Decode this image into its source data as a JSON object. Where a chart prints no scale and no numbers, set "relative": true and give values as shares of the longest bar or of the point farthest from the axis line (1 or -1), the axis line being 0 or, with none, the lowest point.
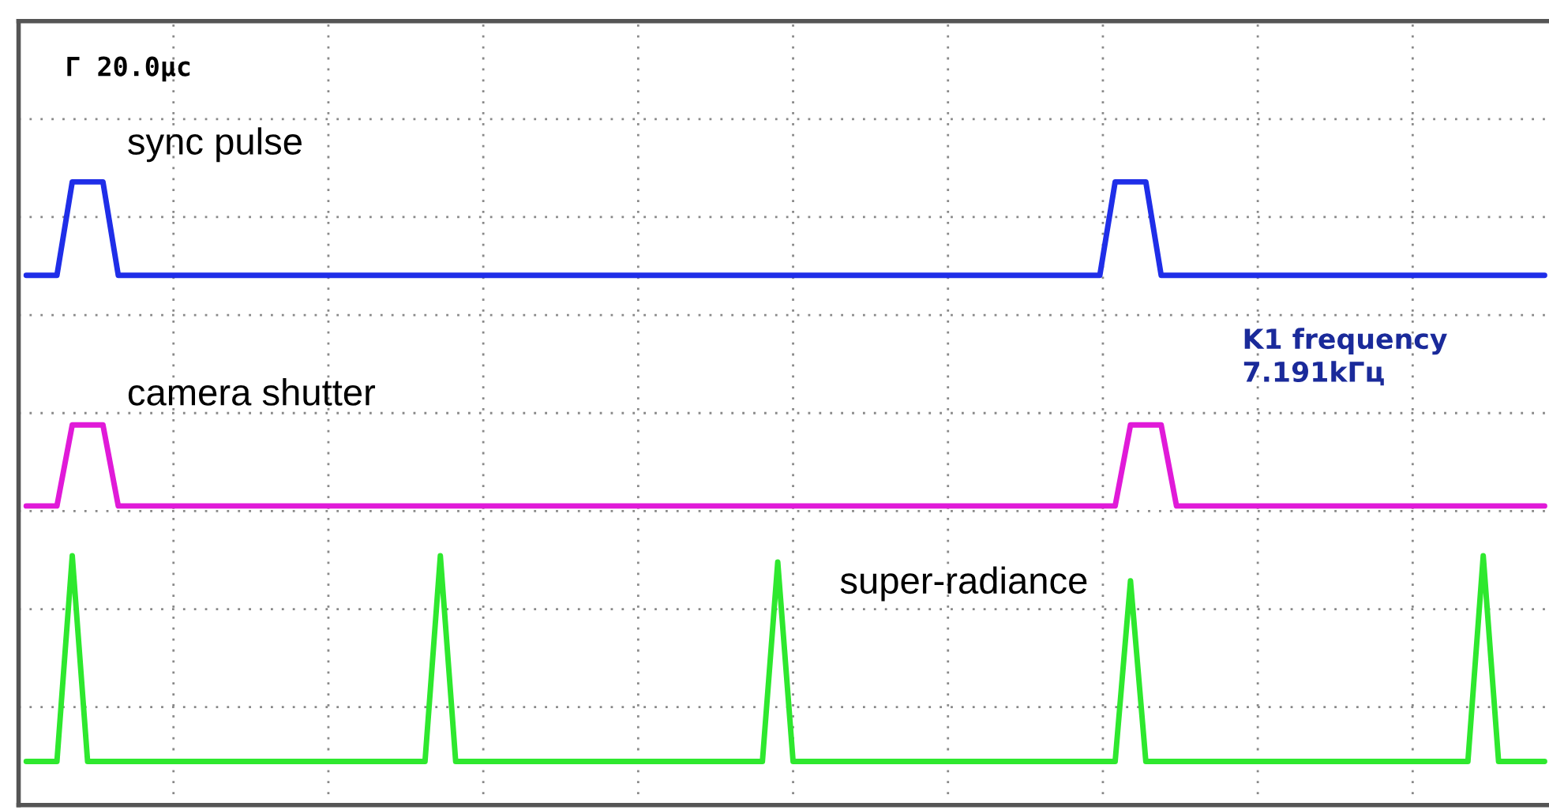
{
  "chart_data": {
    "type": "line",
    "relative": true,
    "grid": true,
    "tick_labels": false,
    "legend": false,
    "marker": "none",
    "line_style": "solid",
    "categories": [
      null,
      null,
      null,
      null,
      null,
      null,
      null,
      null,
      null,
      null,
      null,
      null,
      null,
      null,
      null,
      null,
      null,
      null,
      null,
      null,
      null,
      null,
      null,
      null,
      null,
      null,
      null,
      null,
      null,
      null,
      null,
      null,
      null,
      null,
      null,
      null,
      null,
      null,
      null,
      null,
      null,
      null,
      null,
      null,
      null,
      null,
      null,
      null,
      null,
      null,
      null,
      null,
      null,
      null,
      null,
      null,
      null,
      null,
      null,
      null,
      null,
      null,
      null,
      null,
      null,
      null,
      null,
      null,
      null,
      null,
      null,
      null,
      null,
      null,
      null,
      null,
      null,
      null,
      null,
      null,
      null,
      null,
      null,
      null,
      null,
      null,
      null,
      null,
      null,
      null,
      null,
      null,
      null,
      null,
      null,
      null,
      null,
      null,
      null,
      null
    ],
    "series": [
      {
        "name": "sync pulse",
        "color": "#1f2ee8",
        "values": [
          0.85,
          0.85,
          0.85,
          1,
          1,
          1,
          0.85,
          0.85,
          0.85,
          0.85,
          0.85,
          0.85,
          0.85,
          0.85,
          0.85,
          0.85,
          0.85,
          0.85,
          0.85,
          0.85,
          0.85,
          0.85,
          0.85,
          0.85,
          0.85,
          0.85,
          0.85,
          0.85,
          0.85,
          0.85,
          0.85,
          0.85,
          0.85,
          0.85,
          0.85,
          0.85,
          0.85,
          0.85,
          0.85,
          0.85,
          0.85,
          0.85,
          0.85,
          0.85,
          0.85,
          0.85,
          0.85,
          0.85,
          0.85,
          0.85,
          0.85,
          0.85,
          0.85,
          0.85,
          0.85,
          0.85,
          0.85,
          0.85,
          0.85,
          0.85,
          0.85,
          0.85,
          0.85,
          0.85,
          0.85,
          0.85,
          0.85,
          0.85,
          0.85,
          0.85,
          0.85,
          1,
          1,
          1,
          0.85,
          0.85,
          0.85,
          0.85,
          0.85,
          0.85,
          0.85,
          0.85,
          0.85,
          0.85,
          0.85,
          0.85,
          0.85,
          0.85,
          0.85,
          0.85,
          0.85,
          0.85,
          0.85,
          0.85,
          0.85,
          0.85,
          0.85,
          0.85,
          0.85,
          0.85
        ]
      },
      {
        "name": "camera shutter",
        "color": "#e01ad8",
        "values": [
          0.48,
          0.48,
          0.48,
          0.61,
          0.61,
          0.61,
          0.48,
          0.48,
          0.48,
          0.48,
          0.48,
          0.48,
          0.48,
          0.48,
          0.48,
          0.48,
          0.48,
          0.48,
          0.48,
          0.48,
          0.48,
          0.48,
          0.48,
          0.48,
          0.48,
          0.48,
          0.48,
          0.48,
          0.48,
          0.48,
          0.48,
          0.48,
          0.48,
          0.48,
          0.48,
          0.48,
          0.48,
          0.48,
          0.48,
          0.48,
          0.48,
          0.48,
          0.48,
          0.48,
          0.48,
          0.48,
          0.48,
          0.48,
          0.48,
          0.48,
          0.48,
          0.48,
          0.48,
          0.48,
          0.48,
          0.48,
          0.48,
          0.48,
          0.48,
          0.48,
          0.48,
          0.48,
          0.48,
          0.48,
          0.48,
          0.48,
          0.48,
          0.48,
          0.48,
          0.48,
          0.48,
          0.48,
          0.61,
          0.61,
          0.61,
          0.48,
          0.48,
          0.48,
          0.48,
          0.48,
          0.48,
          0.48,
          0.48,
          0.48,
          0.48,
          0.48,
          0.48,
          0.48,
          0.48,
          0.48,
          0.48,
          0.48,
          0.48,
          0.48,
          0.48,
          0.48,
          0.48,
          0.48,
          0.48,
          0.48
        ]
      },
      {
        "name": "super-radiance",
        "color": "#2ee82e",
        "values": [
          0.07,
          0.07,
          0.07,
          0.4,
          0.07,
          0.07,
          0.07,
          0.07,
          0.07,
          0.07,
          0.07,
          0.07,
          0.07,
          0.07,
          0.07,
          0.07,
          0.07,
          0.07,
          0.07,
          0.07,
          0.07,
          0.07,
          0.07,
          0.07,
          0.07,
          0.07,
          0.07,
          0.4,
          0.07,
          0.07,
          0.07,
          0.07,
          0.07,
          0.07,
          0.07,
          0.07,
          0.07,
          0.07,
          0.07,
          0.07,
          0.07,
          0.07,
          0.07,
          0.07,
          0.07,
          0.07,
          0.07,
          0.07,
          0.07,
          0.39,
          0.07,
          0.07,
          0.07,
          0.07,
          0.07,
          0.07,
          0.07,
          0.07,
          0.07,
          0.07,
          0.07,
          0.07,
          0.07,
          0.07,
          0.07,
          0.07,
          0.07,
          0.07,
          0.07,
          0.07,
          0.07,
          0.07,
          0.36,
          0.07,
          0.07,
          0.07,
          0.07,
          0.07,
          0.07,
          0.07,
          0.07,
          0.07,
          0.07,
          0.07,
          0.07,
          0.07,
          0.07,
          0.07,
          0.07,
          0.07,
          0.07,
          0.07,
          0.07,
          0.07,
          0.07,
          0.4,
          0.07,
          0.07,
          0.07,
          0.07
        ]
      }
    ],
    "annotations": [
      "Г 20.0μс",
      "K1 frequency\n7.191kГц"
    ]
  }
}
